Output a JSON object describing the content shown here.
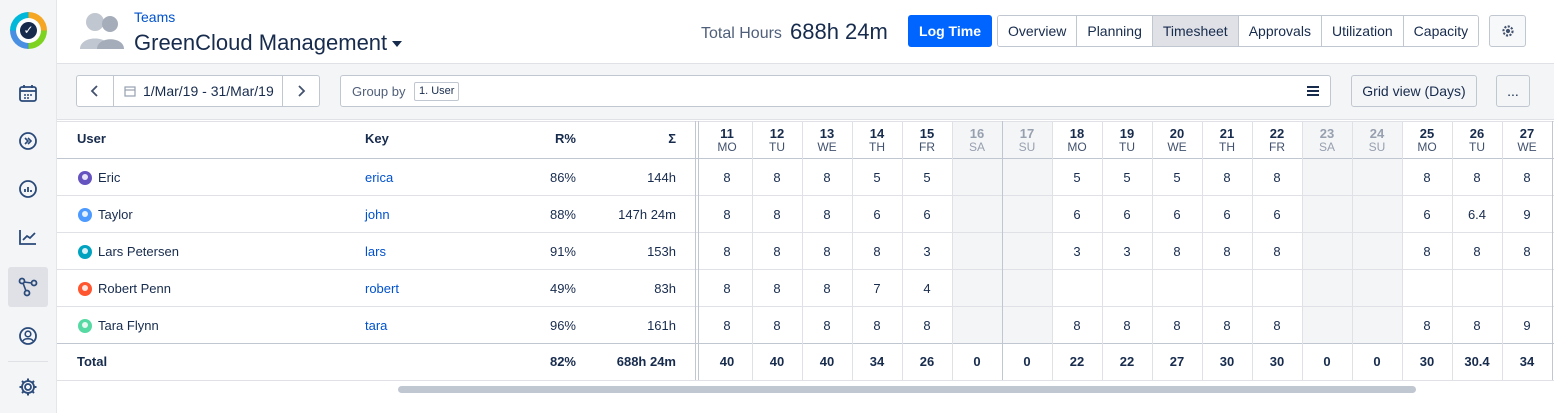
{
  "header": {
    "breadcrumb": "Teams",
    "title": "GreenCloud Management",
    "total_hours_label": "Total Hours",
    "total_hours_value": "688h 24m",
    "log_time": "Log Time",
    "tabs": [
      "Overview",
      "Planning",
      "Timesheet",
      "Approvals",
      "Utilization",
      "Capacity"
    ],
    "active_tab": "Timesheet"
  },
  "toolbar": {
    "date_range": "1/Mar/19 - 31/Mar/19",
    "group_by_label": "Group by",
    "group_by_chip": "1. User",
    "grid_view": "Grid view (Days)",
    "more": "..."
  },
  "table": {
    "columns": {
      "user": "User",
      "key": "Key",
      "r": "R%",
      "sum": "Σ"
    },
    "days": [
      {
        "num": "11",
        "dow": "MO",
        "weekend": false
      },
      {
        "num": "12",
        "dow": "TU",
        "weekend": false
      },
      {
        "num": "13",
        "dow": "WE",
        "weekend": false
      },
      {
        "num": "14",
        "dow": "TH",
        "weekend": false
      },
      {
        "num": "15",
        "dow": "FR",
        "weekend": false
      },
      {
        "num": "16",
        "dow": "SA",
        "weekend": true
      },
      {
        "num": "17",
        "dow": "SU",
        "weekend": true
      },
      {
        "num": "18",
        "dow": "MO",
        "weekend": false
      },
      {
        "num": "19",
        "dow": "TU",
        "weekend": false
      },
      {
        "num": "20",
        "dow": "WE",
        "weekend": false
      },
      {
        "num": "21",
        "dow": "TH",
        "weekend": false
      },
      {
        "num": "22",
        "dow": "FR",
        "weekend": false
      },
      {
        "num": "23",
        "dow": "SA",
        "weekend": true
      },
      {
        "num": "24",
        "dow": "SU",
        "weekend": true
      },
      {
        "num": "25",
        "dow": "MO",
        "weekend": false
      },
      {
        "num": "26",
        "dow": "TU",
        "weekend": false
      },
      {
        "num": "27",
        "dow": "WE",
        "weekend": false
      }
    ],
    "rows": [
      {
        "user": "Eric",
        "key": "erica",
        "r": "86%",
        "sum": "144h",
        "avatar_color": "#6554c0",
        "hours": [
          "8",
          "8",
          "8",
          "5",
          "5",
          "",
          "",
          "5",
          "5",
          "5",
          "8",
          "8",
          "",
          "",
          "8",
          "8",
          "8"
        ]
      },
      {
        "user": "Taylor",
        "key": "john",
        "r": "88%",
        "sum": "147h 24m",
        "avatar_color": "#4c9aff",
        "hours": [
          "8",
          "8",
          "8",
          "6",
          "6",
          "",
          "",
          "6",
          "6",
          "6",
          "6",
          "6",
          "",
          "",
          "6",
          "6.4",
          "9"
        ]
      },
      {
        "user": "Lars Petersen",
        "key": "lars",
        "r": "91%",
        "sum": "153h",
        "avatar_color": "#00a3bf",
        "hours": [
          "8",
          "8",
          "8",
          "8",
          "3",
          "",
          "",
          "3",
          "3",
          "8",
          "8",
          "8",
          "",
          "",
          "8",
          "8",
          "8"
        ]
      },
      {
        "user": "Robert Penn",
        "key": "robert",
        "r": "49%",
        "sum": "83h",
        "avatar_color": "#ff5630",
        "hours": [
          "8",
          "8",
          "8",
          "7",
          "4",
          "",
          "",
          "",
          "",
          "",
          "",
          "",
          "",
          "",
          "",
          "",
          ""
        ]
      },
      {
        "user": "Tara Flynn",
        "key": "tara",
        "r": "96%",
        "sum": "161h",
        "avatar_color": "#57d9a3",
        "hours": [
          "8",
          "8",
          "8",
          "8",
          "8",
          "",
          "",
          "8",
          "8",
          "8",
          "8",
          "8",
          "",
          "",
          "8",
          "8",
          "9"
        ]
      }
    ],
    "total": {
      "label": "Total",
      "r": "82%",
      "sum": "688h 24m",
      "hours": [
        "40",
        "40",
        "40",
        "34",
        "26",
        "0",
        "0",
        "22",
        "22",
        "27",
        "30",
        "30",
        "0",
        "0",
        "30",
        "30.4",
        "34"
      ]
    }
  }
}
